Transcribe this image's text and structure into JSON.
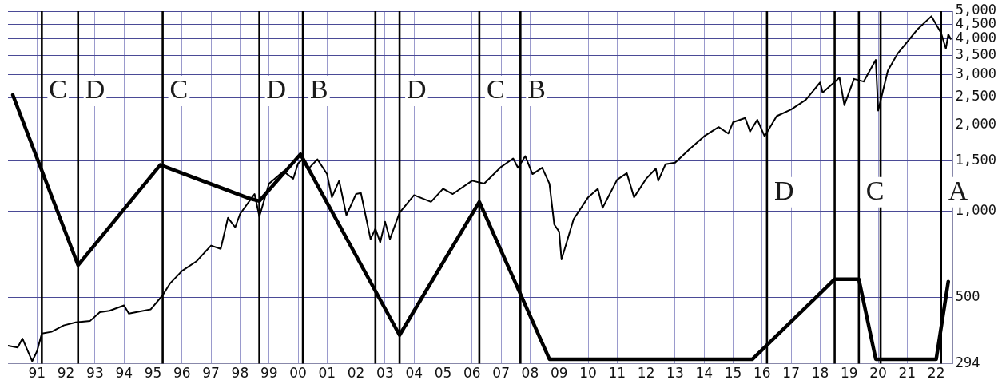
{
  "chart_data": {
    "type": "line",
    "log": "y",
    "grid": true,
    "marker": "none",
    "line_style": "solid",
    "legend": false,
    "xlim": [
      "1990-01",
      "2022-08"
    ],
    "xticks": [
      {
        "value": "1991",
        "label": "91"
      },
      {
        "value": "1992",
        "label": "92"
      },
      {
        "value": "1993",
        "label": "93"
      },
      {
        "value": "1994",
        "label": "94"
      },
      {
        "value": "1995",
        "label": "95"
      },
      {
        "value": "1996",
        "label": "96"
      },
      {
        "value": "1997",
        "label": "97"
      },
      {
        "value": "1998",
        "label": "98"
      },
      {
        "value": "1999",
        "label": "99"
      },
      {
        "value": "2000",
        "label": "00"
      },
      {
        "value": "2001",
        "label": "01"
      },
      {
        "value": "2002",
        "label": "02"
      },
      {
        "value": "2003",
        "label": "03"
      },
      {
        "value": "2004",
        "label": "04"
      },
      {
        "value": "2005",
        "label": "05"
      },
      {
        "value": "2006",
        "label": "06"
      },
      {
        "value": "2007",
        "label": "07"
      },
      {
        "value": "2008",
        "label": "08"
      },
      {
        "value": "2009",
        "label": "09"
      },
      {
        "value": "2010",
        "label": "10"
      },
      {
        "value": "2011",
        "label": "11"
      },
      {
        "value": "2012",
        "label": "12"
      },
      {
        "value": "2013",
        "label": "13"
      },
      {
        "value": "2014",
        "label": "14"
      },
      {
        "value": "2015",
        "label": "15"
      },
      {
        "value": "2016",
        "label": "16"
      },
      {
        "value": "2017",
        "label": "17"
      },
      {
        "value": "2018",
        "label": "18"
      },
      {
        "value": "2019",
        "label": "19"
      },
      {
        "value": "2020",
        "label": "20"
      },
      {
        "value": "2021",
        "label": "21"
      },
      {
        "value": "2022",
        "label": "22"
      }
    ],
    "ylim": [
      294,
      5000
    ],
    "yticks": [
      294,
      500,
      {
        "value": 1000,
        "label": "1,000"
      },
      {
        "value": 1500,
        "label": "1,500"
      },
      {
        "value": 2000,
        "label": "2,000"
      },
      {
        "value": 2500,
        "label": "2,500"
      },
      {
        "value": 3000,
        "label": "3,000"
      },
      {
        "value": 3500,
        "label": "3,500"
      },
      {
        "value": 4000,
        "label": "4,000"
      },
      {
        "value": 4500,
        "label": "4,500"
      },
      {
        "value": 5000,
        "label": "5,000"
      }
    ],
    "series": [
      {
        "type": "line",
        "color": "#000000",
        "x": [
          "1990-01",
          "1990-05",
          "1990-07",
          "1990-11",
          "1991-01",
          "1991-03",
          "1991-07",
          "1991-12",
          "1992-05",
          "1992-11",
          "1993-03",
          "1993-07",
          "1994-01",
          "1994-03",
          "1994-12",
          "1995-05",
          "1995-08",
          "1996-01",
          "1996-07",
          "1997-01",
          "1997-05",
          "1997-08",
          "1997-11",
          "1998-01",
          "1998-07",
          "1998-09",
          "1999-01",
          "1999-07",
          "1999-11",
          "2000-01",
          "2000-03",
          "2000-05",
          "2000-09",
          "2001-01",
          "2001-03",
          "2001-06",
          "2001-09",
          "2002-01",
          "2002-03",
          "2002-07",
          "2002-09",
          "2002-11",
          "2003-01",
          "2003-03",
          "2003-07",
          "2004-01",
          "2004-08",
          "2005-01",
          "2005-05",
          "2006-01",
          "2006-06",
          "2007-01",
          "2007-06",
          "2007-08",
          "2007-11",
          "2008-02",
          "2008-06",
          "2008-09",
          "2008-11",
          "2009-01",
          "2009-02",
          "2009-07",
          "2010-01",
          "2010-05",
          "2010-07",
          "2011-01",
          "2011-05",
          "2011-08",
          "2012-01",
          "2012-05",
          "2012-06",
          "2012-09",
          "2013-01",
          "2013-07",
          "2014-01",
          "2014-07",
          "2014-11",
          "2015-01",
          "2015-06",
          "2015-08",
          "2015-11",
          "2016-02",
          "2016-07",
          "2017-01",
          "2017-07",
          "2018-01",
          "2018-02",
          "2018-09",
          "2018-11",
          "2019-03",
          "2019-07",
          "2019-12",
          "2020-01",
          "2020-05",
          "2020-09",
          "2021-05",
          "2021-11",
          "2022-03",
          "2022-05",
          "2022-06",
          "2022-07"
        ],
        "values": [
          340,
          335,
          360,
          300,
          325,
          375,
          380,
          400,
          410,
          415,
          445,
          450,
          470,
          440,
          455,
          510,
          560,
          620,
          670,
          760,
          740,
          950,
          880,
          980,
          1150,
          960,
          1250,
          1380,
          1300,
          1470,
          1520,
          1400,
          1520,
          1350,
          1120,
          1280,
          970,
          1150,
          1160,
          800,
          870,
          780,
          920,
          800,
          990,
          1140,
          1080,
          1200,
          1150,
          1280,
          1250,
          1430,
          1530,
          1420,
          1560,
          1350,
          1420,
          1250,
          900,
          850,
          680,
          940,
          1120,
          1200,
          1030,
          1290,
          1360,
          1120,
          1300,
          1410,
          1280,
          1460,
          1480,
          1650,
          1830,
          1970,
          1870,
          2050,
          2120,
          1900,
          2090,
          1830,
          2150,
          2270,
          2450,
          2820,
          2600,
          2930,
          2350,
          2900,
          2840,
          3380,
          2250,
          3100,
          3550,
          4300,
          4800,
          4200,
          3700,
          4150,
          4000
        ]
      },
      {
        "type": "line",
        "color": "#000000",
        "x": [
          "1990-03",
          "1992-06",
          "1995-04",
          "1998-04",
          "1998-09",
          "2000-02",
          "2003-07",
          "2006-04",
          "2008-09",
          "2015-09",
          "2018-07",
          "2019-05",
          "2019-12",
          "2022-01",
          "2022-06"
        ],
        "values": [
          2550,
          649,
          1453,
          1116,
          1087,
          1584,
          370,
          1080,
          305,
          305,
          580,
          580,
          305,
          305,
          569
        ]
      }
    ],
    "ref_lines": [
      {
        "axis": "x",
        "value": "1991-03",
        "color": "#000000",
        "label": "C"
      },
      {
        "axis": "x",
        "value": "1992-06",
        "color": "#000000",
        "label": "D"
      },
      {
        "axis": "x",
        "value": "1995-05",
        "color": "#000000",
        "label": "C"
      },
      {
        "axis": "x",
        "value": "1998-09",
        "color": "#000000",
        "label": "D"
      },
      {
        "axis": "x",
        "value": "2000-03",
        "color": "#000000",
        "label": "B"
      },
      {
        "axis": "x",
        "value": "2002-09",
        "color": "#000000"
      },
      {
        "axis": "x",
        "value": "2003-07",
        "color": "#000000",
        "label": "D"
      },
      {
        "axis": "x",
        "value": "2006-04",
        "color": "#000000",
        "label": "C"
      },
      {
        "axis": "x",
        "value": "2007-09",
        "color": "#000000",
        "label": "B"
      },
      {
        "axis": "x",
        "value": "2016-03",
        "color": "#000000",
        "label": "D"
      },
      {
        "axis": "x",
        "value": "2018-07",
        "color": "#000000"
      },
      {
        "axis": "x",
        "value": "2019-05",
        "color": "#000000",
        "label": "C"
      },
      {
        "axis": "x",
        "value": "2020-02",
        "color": "#000000"
      },
      {
        "axis": "x",
        "value": "2022-03",
        "color": "#000000",
        "label": "A"
      }
    ]
  }
}
